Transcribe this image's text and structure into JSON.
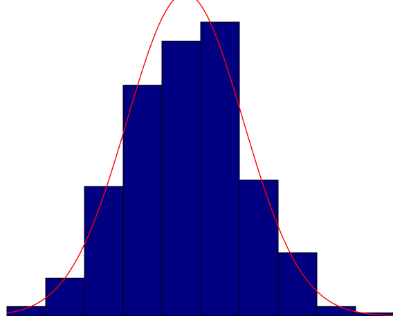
{
  "chart_data": {
    "type": "bar",
    "title": "",
    "xlabel": "",
    "ylabel": "",
    "grid": false,
    "bin_count": 10,
    "values": [
      3,
      12,
      41,
      73,
      87,
      93,
      43,
      20,
      3,
      1
    ],
    "ylim": [
      0,
      100
    ],
    "bar_color": "#000080",
    "bar_edge_color": "#000000",
    "overlay_curve": {
      "type": "normal-fit",
      "color": "#ff0000",
      "peak_value": 102,
      "mean_bin": 4.6,
      "sd_bins": 1.5
    }
  }
}
